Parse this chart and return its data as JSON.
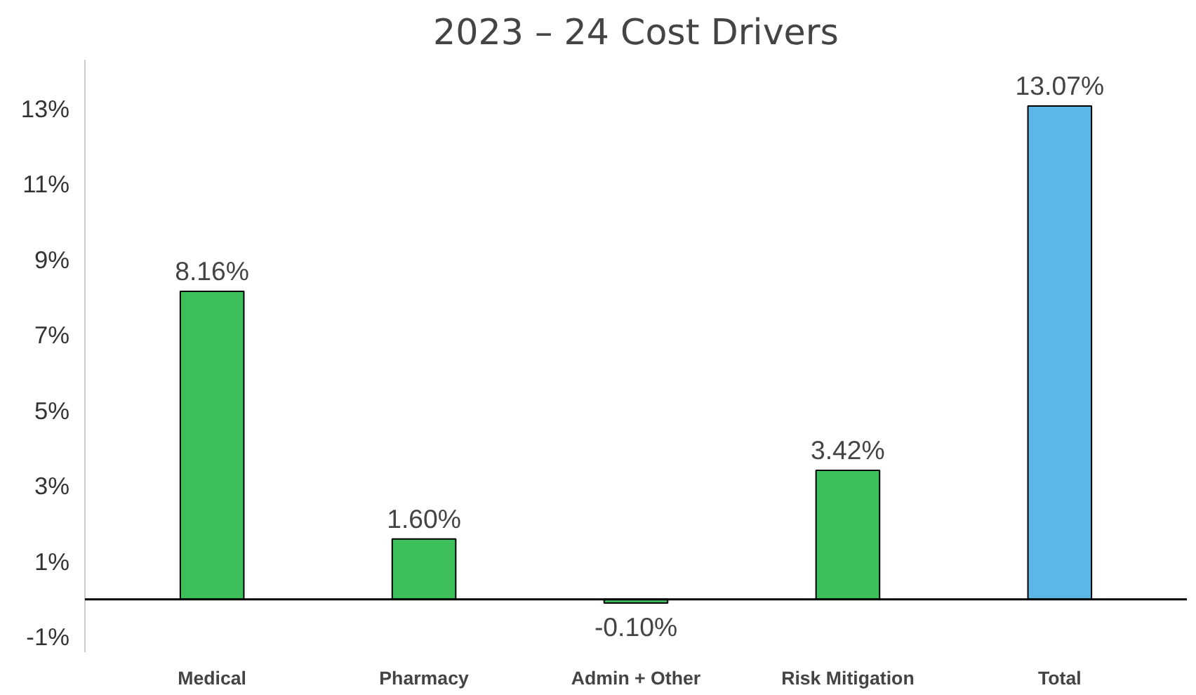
{
  "chart_data": {
    "type": "bar",
    "title": "2023 – 24 Cost Drivers",
    "categories": [
      "Medical",
      "Pharmacy",
      "Admin + Other",
      "Risk Mitigation",
      "Total"
    ],
    "values": [
      8.16,
      1.6,
      -0.1,
      3.42,
      13.07
    ],
    "colors": [
      "#3dbf5c",
      "#3dbf5c",
      "#3dbf5c",
      "#3dbf5c",
      "#5cb6e6"
    ],
    "value_labels": [
      "8.16%",
      "1.60%",
      "-0.10%",
      "3.42%",
      "13.07%"
    ],
    "ylim": [
      -1.4,
      14.3
    ],
    "yticks": [
      {
        "value": -1,
        "label": "-1%"
      },
      {
        "value": 1,
        "label": "1%"
      },
      {
        "value": 3,
        "label": "3%"
      },
      {
        "value": 5,
        "label": "5%"
      },
      {
        "value": 7,
        "label": "7%"
      },
      {
        "value": 9,
        "label": "9%"
      },
      {
        "value": 11,
        "label": "11%"
      },
      {
        "value": 13,
        "label": "13%"
      }
    ],
    "grid": false
  }
}
